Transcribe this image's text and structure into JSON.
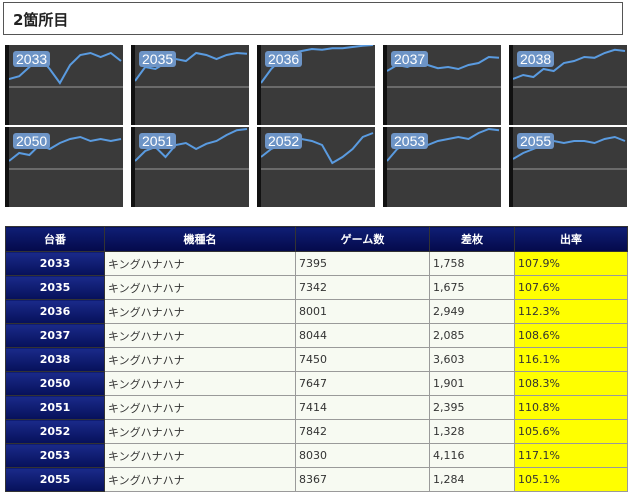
{
  "section": {
    "title": "2箇所目"
  },
  "thumbnails": [
    {
      "label": "2033",
      "points": [
        0.85,
        0.78,
        0.55,
        0.3,
        0.6,
        0.95,
        0.5,
        0.25,
        0.2,
        0.3,
        0.2,
        0.4
      ]
    },
    {
      "label": "2035",
      "points": [
        0.9,
        0.55,
        0.6,
        0.45,
        0.35,
        0.4,
        0.2,
        0.25,
        0.35,
        0.25,
        0.2,
        0.22
      ]
    },
    {
      "label": "2036",
      "points": [
        0.95,
        0.6,
        0.35,
        0.2,
        0.15,
        0.1,
        0.12,
        0.08,
        0.08,
        0.05,
        0.02,
        0.0
      ]
    },
    {
      "label": "2037",
      "points": [
        0.65,
        0.5,
        0.55,
        0.45,
        0.5,
        0.58,
        0.55,
        0.6,
        0.5,
        0.45,
        0.3,
        0.32
      ]
    },
    {
      "label": "2038",
      "points": [
        0.85,
        0.75,
        0.8,
        0.6,
        0.65,
        0.45,
        0.4,
        0.3,
        0.32,
        0.2,
        0.12,
        0.15
      ]
    },
    {
      "label": "2050",
      "points": [
        0.85,
        0.65,
        0.7,
        0.45,
        0.55,
        0.4,
        0.3,
        0.25,
        0.35,
        0.3,
        0.35,
        0.3
      ]
    },
    {
      "label": "2051",
      "points": [
        0.85,
        0.6,
        0.5,
        0.75,
        0.45,
        0.4,
        0.55,
        0.42,
        0.35,
        0.2,
        0.08,
        0.05
      ]
    },
    {
      "label": "2052",
      "points": [
        0.75,
        0.55,
        0.45,
        0.35,
        0.3,
        0.35,
        0.45,
        0.9,
        0.75,
        0.55,
        0.25,
        0.15
      ]
    },
    {
      "label": "2053",
      "points": [
        0.85,
        0.55,
        0.4,
        0.35,
        0.45,
        0.35,
        0.3,
        0.25,
        0.3,
        0.15,
        0.05,
        0.08
      ]
    },
    {
      "label": "2055",
      "points": [
        0.8,
        0.65,
        0.55,
        0.45,
        0.35,
        0.4,
        0.35,
        0.35,
        0.4,
        0.3,
        0.25,
        0.35
      ]
    }
  ],
  "table": {
    "headers": [
      "台番",
      "機種名",
      "ゲーム数",
      "差枚",
      "出率"
    ],
    "rows": [
      [
        "2033",
        "キングハナハナ",
        "7395",
        "1,758",
        "107.9%"
      ],
      [
        "2035",
        "キングハナハナ",
        "7342",
        "1,675",
        "107.6%"
      ],
      [
        "2036",
        "キングハナハナ",
        "8001",
        "2,949",
        "112.3%"
      ],
      [
        "2037",
        "キングハナハナ",
        "8044",
        "2,085",
        "108.6%"
      ],
      [
        "2038",
        "キングハナハナ",
        "7450",
        "3,603",
        "116.1%"
      ],
      [
        "2050",
        "キングハナハナ",
        "7647",
        "1,901",
        "108.3%"
      ],
      [
        "2051",
        "キングハナハナ",
        "7414",
        "2,395",
        "110.8%"
      ],
      [
        "2052",
        "キングハナハナ",
        "7842",
        "1,328",
        "105.6%"
      ],
      [
        "2053",
        "キングハナハナ",
        "8030",
        "4,116",
        "117.1%"
      ],
      [
        "2055",
        "キングハナハナ",
        "8367",
        "1,284",
        "105.1%"
      ]
    ]
  }
}
